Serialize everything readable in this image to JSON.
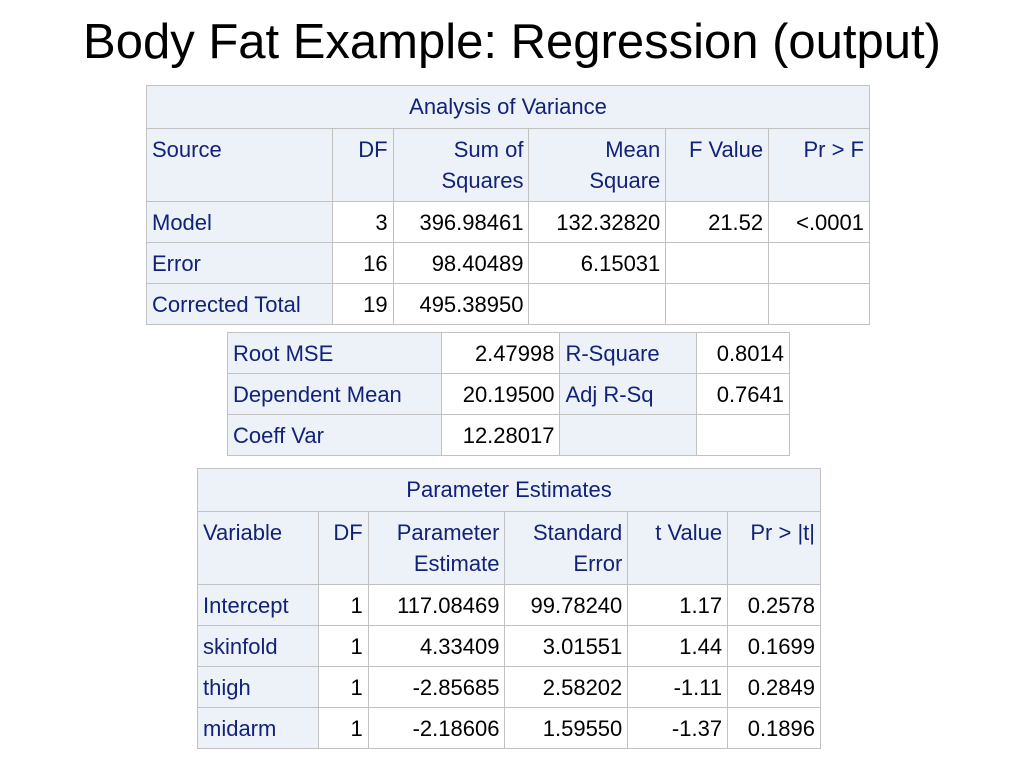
{
  "slide": {
    "title": "Body Fat Example: Regression (output)"
  },
  "anova": {
    "caption": "Analysis of Variance",
    "headers": [
      "Source",
      "DF",
      "Sum of\nSquares",
      "Mean\nSquare",
      "F Value",
      "Pr > F"
    ],
    "rows": [
      [
        "Model",
        "3",
        "396.98461",
        "132.32820",
        "21.52",
        "<.0001"
      ],
      [
        "Error",
        "16",
        "98.40489",
        "6.15031",
        "",
        ""
      ],
      [
        "Corrected Total",
        "19",
        "495.38950",
        "",
        "",
        ""
      ]
    ]
  },
  "fit_stats": {
    "rows": [
      [
        "Root MSE",
        "2.47998",
        "R-Square",
        "0.8014"
      ],
      [
        "Dependent Mean",
        "20.19500",
        "Adj R-Sq",
        "0.7641"
      ],
      [
        "Coeff Var",
        "12.28017",
        "",
        ""
      ]
    ]
  },
  "params": {
    "caption": "Parameter Estimates",
    "headers": [
      "Variable",
      "DF",
      "Parameter\nEstimate",
      "Standard\nError",
      "t Value",
      "Pr > |t|"
    ],
    "rows": [
      [
        "Intercept",
        "1",
        "117.08469",
        "99.78240",
        "1.17",
        "0.2578"
      ],
      [
        "skinfold",
        "1",
        "4.33409",
        "3.01551",
        "1.44",
        "0.1699"
      ],
      [
        "thigh",
        "1",
        "-2.85685",
        "2.58202",
        "-1.11",
        "0.2849"
      ],
      [
        "midarm",
        "1",
        "-2.18606",
        "1.59550",
        "-1.37",
        "0.1896"
      ]
    ]
  }
}
